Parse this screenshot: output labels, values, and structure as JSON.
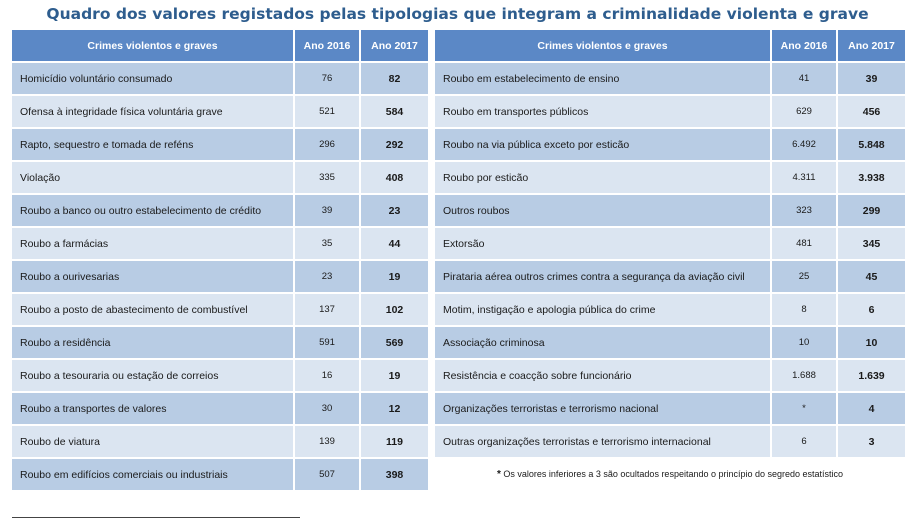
{
  "title": "Quadro dos valores registados pelas tipologias que integram a criminalidade violenta e grave",
  "headers": {
    "crime": "Crimes violentos e graves",
    "year2016": "Ano 2016",
    "year2017": "Ano 2017"
  },
  "left_rows": [
    {
      "name": "Homicídio voluntário consumado",
      "v2016": "76",
      "v2017": "82"
    },
    {
      "name": "Ofensa à integridade física voluntária grave",
      "v2016": "521",
      "v2017": "584"
    },
    {
      "name": "Rapto, sequestro e tomada de reféns",
      "v2016": "296",
      "v2017": "292"
    },
    {
      "name": "Violação",
      "v2016": "335",
      "v2017": "408"
    },
    {
      "name": "Roubo a banco ou outro estabelecimento de crédito",
      "v2016": "39",
      "v2017": "23"
    },
    {
      "name": "Roubo a farmácias",
      "v2016": "35",
      "v2017": "44"
    },
    {
      "name": "Roubo a ourivesarias",
      "v2016": "23",
      "v2017": "19"
    },
    {
      "name": "Roubo a posto de abastecimento de combustível",
      "v2016": "137",
      "v2017": "102"
    },
    {
      "name": "Roubo a residência",
      "v2016": "591",
      "v2017": "569"
    },
    {
      "name": "Roubo a tesouraria ou estação de correios",
      "v2016": "16",
      "v2017": "19"
    },
    {
      "name": "Roubo a transportes de valores",
      "v2016": "30",
      "v2017": "12"
    },
    {
      "name": "Roubo de viatura",
      "v2016": "139",
      "v2017": "119"
    },
    {
      "name": "Roubo em edifícios comerciais ou industriais",
      "v2016": "507",
      "v2017": "398"
    }
  ],
  "right_rows": [
    {
      "name": "Roubo em estabelecimento de ensino",
      "v2016": "41",
      "v2017": "39"
    },
    {
      "name": "Roubo em transportes públicos",
      "v2016": "629",
      "v2017": "456"
    },
    {
      "name": "Roubo na via pública  exceto por esticão",
      "v2016": "6.492",
      "v2017": "5.848"
    },
    {
      "name": "Roubo por esticão",
      "v2016": "4.311",
      "v2017": "3.938"
    },
    {
      "name": "Outros roubos",
      "v2016": "323",
      "v2017": "299"
    },
    {
      "name": "Extorsão",
      "v2016": "481",
      "v2017": "345"
    },
    {
      "name": "Pirataria aérea outros crimes contra a segurança da aviação civil",
      "v2016": "25",
      "v2017": "45"
    },
    {
      "name": "Motim, instigação e apologia pública do crime",
      "v2016": "8",
      "v2017": "6"
    },
    {
      "name": "Associação criminosa",
      "v2016": "10",
      "v2017": "10"
    },
    {
      "name": "Resistência e coacção sobre funcionário",
      "v2016": "1.688",
      "v2017": "1.639"
    },
    {
      "name": "Organizações terroristas e terrorismo nacional",
      "v2016": "*",
      "v2017": "4"
    },
    {
      "name": "Outras organizações terroristas e terrorismo internacional",
      "v2016": "6",
      "v2017": "3"
    }
  ],
  "footnote": {
    "marker": "*",
    "text": "Os valores inferiores a 3 são ocultados respeitando o princípio do segredo estatístico"
  }
}
